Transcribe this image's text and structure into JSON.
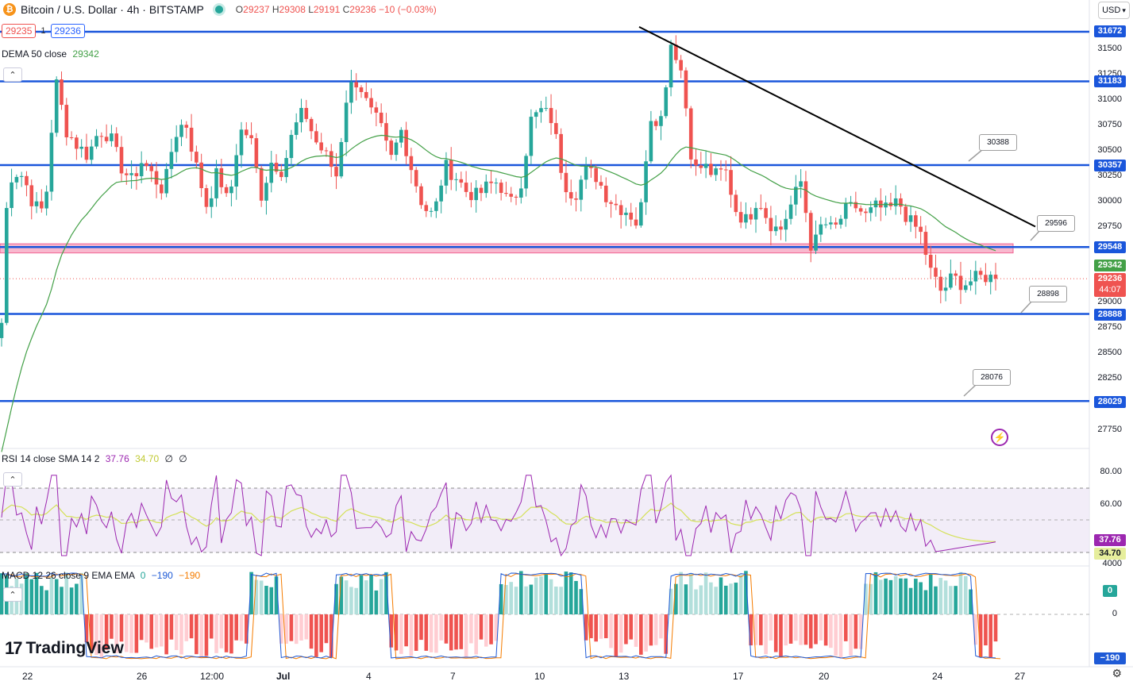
{
  "header": {
    "coin_symbol": "₿",
    "title": "Bitcoin / U.S. Dollar · 4h · BITSTAMP",
    "ohlc": {
      "o": "29237",
      "h": "29308",
      "l": "29191",
      "c": "29236",
      "change": "−10 (−0.03%)"
    },
    "bid": "29235",
    "spread": "1",
    "ask": "29236",
    "currency": "USD"
  },
  "indicators": {
    "dema": {
      "label": "DEMA 50 close",
      "value": "29342"
    },
    "rsi": {
      "label": "RSI 14 close SMA 14 2",
      "rsi": "37.76",
      "sma": "34.70",
      "extra1": "∅",
      "extra2": "∅"
    },
    "macd": {
      "label": "MACD 12 26 close 9 EMA EMA",
      "hist": "0",
      "macd": "−190",
      "signal": "−190"
    }
  },
  "price_axis": [
    "31500",
    "31250",
    "31000",
    "30750",
    "30500",
    "30250",
    "30000",
    "29750",
    "29000",
    "28750",
    "28500",
    "28250",
    "27750"
  ],
  "rsi_axis": [
    "80.00",
    "60.00"
  ],
  "macd_axis": [
    "4000",
    "0"
  ],
  "price_tags": {
    "l31672": "31672",
    "l31183": "31183",
    "l30357": "30357",
    "l29548": "29548",
    "dema": "29342",
    "last": "29236",
    "countdown": "44:07",
    "l28888": "28888",
    "l28029": "28029"
  },
  "rsi_tags": {
    "rsi": "37.76",
    "sma": "34.70"
  },
  "macd_tags": {
    "hist": "0",
    "line": "−190"
  },
  "callouts": {
    "c1": "30388",
    "c2": "29596",
    "c3": "28898",
    "c4": "28076"
  },
  "time_axis": [
    "22",
    "26",
    "12:00",
    "Jul",
    "4",
    "7",
    "10",
    "13",
    "17",
    "20",
    "24",
    "27"
  ],
  "brand": {
    "mark": "17",
    "name": "TradingView"
  },
  "icons": {
    "bolt": "⚡",
    "settings": "⚙",
    "collapse": "⌃",
    "dropdown": "▾"
  },
  "colors": {
    "up": "#26a69a",
    "down": "#ef5350",
    "level": "#1a56db",
    "zone": "#f06292",
    "dema": "#43a047",
    "rsi": "#9c27b0",
    "rsi_ma": "#d4e157",
    "macd": "#1e5ad6",
    "signal": "#f57c00",
    "trend": "#000000"
  },
  "chart_data": {
    "type": "candlestick",
    "symbol": "BTCUSD",
    "timeframe": "4h",
    "ylim": [
      27600,
      31750
    ],
    "levels": [
      31672,
      31183,
      30357,
      29548,
      28888,
      28029
    ],
    "zone": [
      29490,
      29580
    ],
    "last_price": 29236,
    "x_labels": [
      "22",
      "26",
      "12:00",
      "Jul",
      "4",
      "7",
      "10",
      "13",
      "17",
      "20",
      "24",
      "27"
    ],
    "trendline": {
      "from_label": "13",
      "start_price": 31720,
      "end_price": 29750
    },
    "series_key": [
      29600,
      30300,
      30250,
      29950,
      29900,
      31200,
      30700,
      30550,
      30450,
      30700,
      30650,
      30350,
      30200,
      30400,
      30250,
      30100,
      30650,
      30800,
      30350,
      29950,
      30300,
      29950,
      30700,
      30650,
      30050,
      30400,
      30300,
      30700,
      30900,
      30600,
      30450,
      30250,
      31100,
      31200,
      30900,
      30750,
      30400,
      30700,
      30300,
      29950,
      29850,
      30350,
      30250,
      30100,
      30050,
      30150,
      30200,
      29950,
      30150,
      30800,
      30900,
      30800,
      30200,
      30050,
      30300,
      30250,
      30050,
      29950,
      29900,
      29750,
      30850,
      30800,
      31600,
      31250,
      30300,
      30350,
      30250,
      30300,
      29900,
      29800,
      30050,
      29800,
      29700,
      29950,
      30200,
      29500,
      29800,
      29700,
      29900,
      29950,
      29850,
      29950,
      29900,
      30000,
      29800,
      29700,
      29300,
      29100,
      29250,
      29180,
      29230,
      29260,
      29236
    ]
  }
}
